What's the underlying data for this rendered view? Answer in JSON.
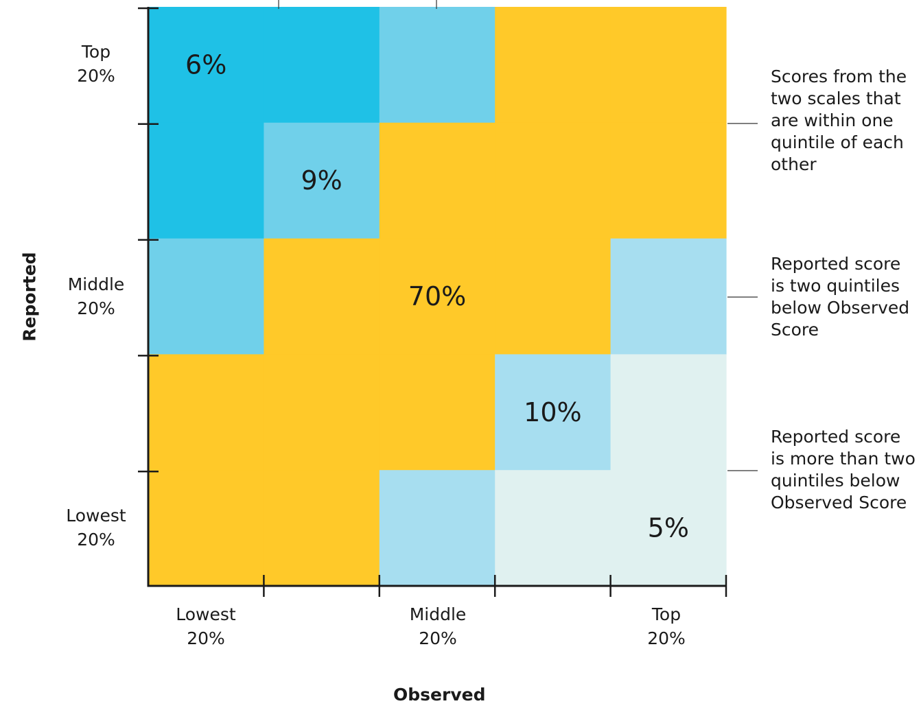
{
  "chart_data": {
    "type": "heatmap",
    "xlabel": "Observed",
    "ylabel": "Reported",
    "x_tick_labels": [
      "Lowest\n20%",
      "Middle\n20%",
      "Top\n20%"
    ],
    "y_tick_labels": [
      "Top\n20%",
      "Middle\n20%",
      "Lowest\n20%"
    ],
    "quintiles": 5,
    "grid_colors": [
      [
        "#1fc1e6",
        "#1fc1e6",
        "#70d0ea",
        "#ffc929",
        "#ffc929"
      ],
      [
        "#1fc1e6",
        "#70d0ea",
        "#ffc929",
        "#ffc929",
        "#ffc929"
      ],
      [
        "#70d0ea",
        "#ffc929",
        "#ffc929",
        "#ffc929",
        "#a7def0"
      ],
      [
        "#ffc929",
        "#ffc929",
        "#ffc929",
        "#a7def0",
        "#e0f1f0"
      ],
      [
        "#ffc929",
        "#ffc929",
        "#a7def0",
        "#e0f1f0",
        "#e0f1f0"
      ]
    ],
    "cell_labels": [
      {
        "text": "6%",
        "row": 0,
        "col": 0.5
      },
      {
        "text": "9%",
        "row": 1,
        "col": 1.5
      },
      {
        "text": "70%",
        "row": 2,
        "col": 2.5
      },
      {
        "text": "10%",
        "row": 3,
        "col": 3.5
      },
      {
        "text": "5%",
        "row": 4,
        "col": 4.5
      }
    ],
    "legend": [
      {
        "text": "Scores from the two scales that are within one quintile of each other",
        "color": "#ffc929"
      },
      {
        "text": "Reported score is two quintiles below Observed Score",
        "color": "#a7def0"
      },
      {
        "text": "Reported score is more than two quintiles below Observed Score",
        "color": "#e0f1f0"
      }
    ]
  }
}
